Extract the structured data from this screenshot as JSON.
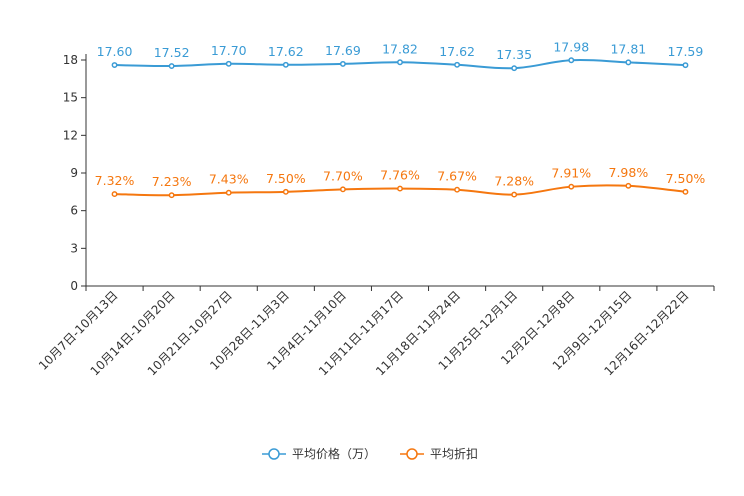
{
  "chart_data": {
    "type": "line",
    "categories": [
      "10月7日-10月13日",
      "10月14日-10月20日",
      "10月21日-10月27日",
      "10月28日-11月3日",
      "11月4日-11月10日",
      "11月11日-11月17日",
      "11月18日-11月24日",
      "11月25日-12月1日",
      "12月2日-12月8日",
      "12月9日-12月15日",
      "12月16日-12月22日"
    ],
    "series": [
      {
        "name": "平均价格（万）",
        "color": "#3a9bd5",
        "values": [
          17.6,
          17.52,
          17.7,
          17.62,
          17.69,
          17.82,
          17.62,
          17.35,
          17.98,
          17.81,
          17.59
        ],
        "labels": [
          "17.60",
          "17.52",
          "17.70",
          "17.62",
          "17.69",
          "17.82",
          "17.62",
          "17.35",
          "17.98",
          "17.81",
          "17.59"
        ]
      },
      {
        "name": "平均折扣",
        "color": "#f5770f",
        "values": [
          7.32,
          7.23,
          7.43,
          7.5,
          7.7,
          7.76,
          7.67,
          7.28,
          7.91,
          7.98,
          7.5
        ],
        "labels": [
          "7.32%",
          "7.23%",
          "7.43%",
          "7.50%",
          "7.70%",
          "7.76%",
          "7.67%",
          "7.28%",
          "7.91%",
          "7.98%",
          "7.50%"
        ]
      }
    ],
    "yticks": [
      0,
      3,
      6,
      9,
      12,
      15,
      18
    ],
    "ylim": [
      0,
      18
    ],
    "title": "",
    "xlabel": "",
    "ylabel": "",
    "grid": false,
    "legend_position": "bottom-center"
  }
}
